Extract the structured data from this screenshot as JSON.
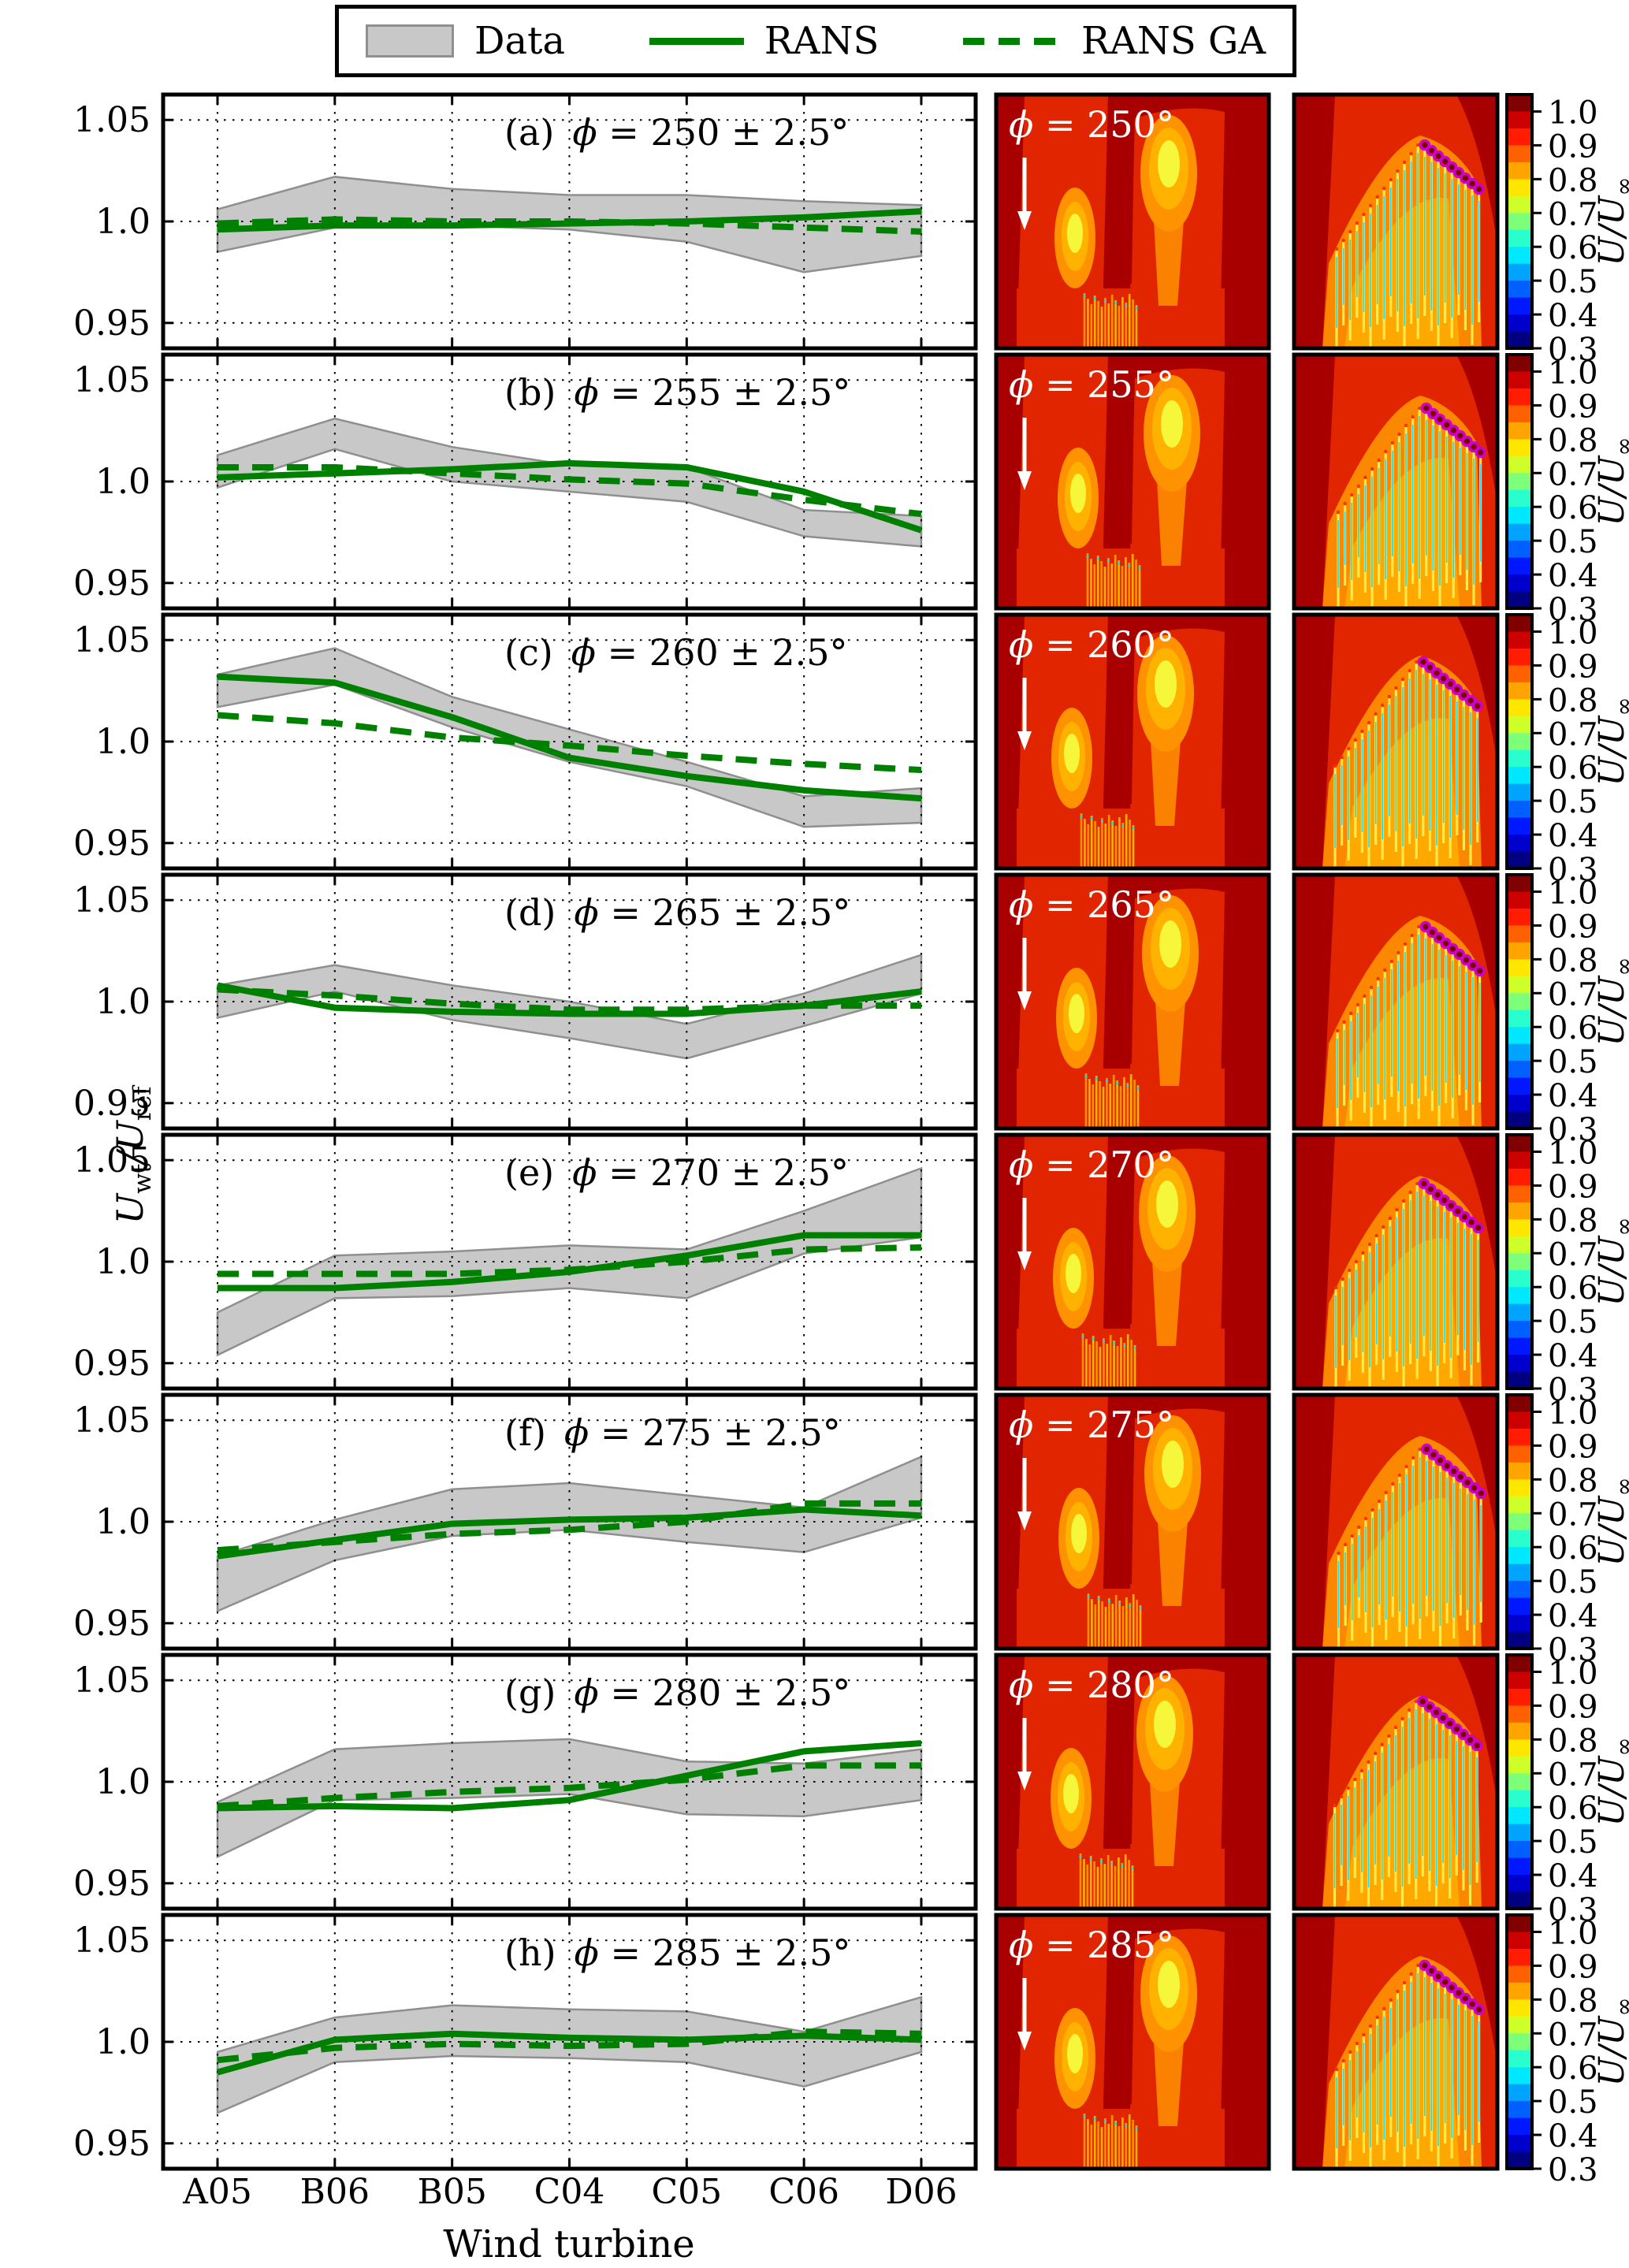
{
  "legend": {
    "items": [
      {
        "label": "Data",
        "swatch": "patch"
      },
      {
        "label": "RANS",
        "swatch": "solid-line"
      },
      {
        "label": "RANS GA",
        "swatch": "dashed-line"
      }
    ]
  },
  "axes": {
    "xlabel": "Wind turbine",
    "ylabel": {
      "base1": "U",
      "sub1": "wt",
      "slash": "/",
      "base2": "U",
      "sub2": "ref"
    },
    "categories": [
      "A05",
      "B06",
      "B05",
      "C04",
      "C05",
      "C06",
      "D06"
    ],
    "yticks": [
      "1.05",
      "1.0",
      "0.95"
    ],
    "ytick_values": [
      1.05,
      1.0,
      0.95
    ],
    "ylim": [
      0.9375,
      1.0625
    ],
    "grid": "dotted"
  },
  "colorbar": {
    "label": {
      "base": "U/U",
      "sub": "∞"
    },
    "ticks": [
      "1.0",
      "0.9",
      "0.8",
      "0.7",
      "0.6",
      "0.5",
      "0.4",
      "0.3"
    ],
    "tick_values": [
      1.0,
      0.9,
      0.8,
      0.7,
      0.6,
      0.5,
      0.4,
      0.3
    ],
    "range": [
      0.3,
      1.05
    ],
    "colors_top_to_bottom": [
      "#800000",
      "#cd0000",
      "#ff1c00",
      "#ff6000",
      "#ffa400",
      "#ffe600",
      "#ceff29",
      "#7dff7a",
      "#29ffce",
      "#00e8ff",
      "#00a4ff",
      "#0060ff",
      "#0018ff",
      "#0000cd",
      "#000080"
    ]
  },
  "colors": {
    "rans_green": "#008000",
    "band_fill": "#c8c8c8",
    "band_edge": "#8f8f8f",
    "contour_dark_red": "#a80000",
    "contour_red": "#e02500",
    "contour_orange": "#ff9200",
    "contour_amber": "#ffb300",
    "contour_yellow": "#f6f63a",
    "wake_yellow": "#ffe84a",
    "wake_cyan": "#00e0ff",
    "turbine_magenta": "#cf00cf",
    "label_white": "#ffffff"
  },
  "chart_data": {
    "type": "line",
    "title": "",
    "xlabel": "Wind turbine",
    "ylabel": "Uwt/Uref",
    "categories": [
      "A05",
      "B06",
      "B05",
      "C04",
      "C05",
      "C06",
      "D06"
    ],
    "ylim": [
      0.9375,
      1.0625
    ],
    "panels": [
      {
        "letter": "(a)",
        "phi_deg": 250,
        "tolerance_deg": 2.5,
        "annotation": "(a) ϕ = 250 ± 2.5°",
        "phi_symbol": "ϕ",
        "annotation_rest": " = 250 ± 2.5°",
        "contour_rest": " = 250°",
        "contour_label": "ϕ = 250°",
        "series": [
          {
            "name": "Data",
            "type": "band",
            "lower": [
              0.985,
              0.997,
              0.998,
              0.996,
              0.99,
              0.975,
              0.983
            ],
            "upper": [
              1.006,
              1.022,
              1.016,
              1.013,
              1.013,
              1.01,
              1.008
            ]
          },
          {
            "name": "RANS",
            "type": "line",
            "style": "solid",
            "values": [
              0.996,
              0.998,
              0.998,
              0.999,
              1.0,
              1.002,
              1.005
            ]
          },
          {
            "name": "RANS GA",
            "type": "line",
            "style": "dashed",
            "values": [
              0.999,
              1.001,
              1.0,
              1.0,
              0.999,
              0.997,
              0.995
            ]
          }
        ]
      },
      {
        "letter": "(b)",
        "phi_deg": 255,
        "tolerance_deg": 2.5,
        "annotation": "(b) ϕ = 255 ± 2.5°",
        "phi_symbol": "ϕ",
        "annotation_rest": " = 255 ± 2.5°",
        "contour_rest": " = 255°",
        "contour_label": "ϕ = 255°",
        "series": [
          {
            "name": "Data",
            "type": "band",
            "lower": [
              0.997,
              1.016,
              1.0,
              0.995,
              0.99,
              0.973,
              0.968
            ],
            "upper": [
              1.013,
              1.031,
              1.017,
              1.008,
              1.007,
              0.986,
              0.983
            ]
          },
          {
            "name": "RANS",
            "type": "line",
            "style": "solid",
            "values": [
              1.002,
              1.004,
              1.006,
              1.009,
              1.007,
              0.995,
              0.976
            ]
          },
          {
            "name": "RANS GA",
            "type": "line",
            "style": "dashed",
            "values": [
              1.007,
              1.007,
              1.004,
              1.001,
              0.999,
              0.991,
              0.984
            ]
          }
        ]
      },
      {
        "letter": "(c)",
        "phi_deg": 260,
        "tolerance_deg": 2.5,
        "annotation": "(c) ϕ = 260 ± 2.5°",
        "phi_symbol": "ϕ",
        "annotation_rest": " = 260 ± 2.5°",
        "contour_rest": " = 260°",
        "contour_label": "ϕ = 260°",
        "series": [
          {
            "name": "Data",
            "type": "band",
            "lower": [
              1.017,
              1.028,
              1.007,
              0.99,
              0.978,
              0.958,
              0.96
            ],
            "upper": [
              1.033,
              1.046,
              1.022,
              1.006,
              0.99,
              0.973,
              0.977
            ]
          },
          {
            "name": "RANS",
            "type": "line",
            "style": "solid",
            "values": [
              1.032,
              1.029,
              1.012,
              0.992,
              0.983,
              0.976,
              0.972
            ]
          },
          {
            "name": "RANS GA",
            "type": "line",
            "style": "dashed",
            "values": [
              1.013,
              1.009,
              1.002,
              0.998,
              0.993,
              0.989,
              0.986
            ]
          }
        ]
      },
      {
        "letter": "(d)",
        "phi_deg": 265,
        "tolerance_deg": 2.5,
        "annotation": "(d) ϕ = 265 ± 2.5°",
        "phi_symbol": "ϕ",
        "annotation_rest": " = 265 ± 2.5°",
        "contour_rest": " = 265°",
        "contour_label": "ϕ = 265°",
        "series": [
          {
            "name": "Data",
            "type": "band",
            "lower": [
              0.992,
              1.005,
              0.991,
              0.982,
              0.972,
              0.988,
              1.004
            ],
            "upper": [
              1.008,
              1.018,
              1.008,
              1.0,
              0.989,
              1.004,
              1.023
            ]
          },
          {
            "name": "RANS",
            "type": "line",
            "style": "solid",
            "values": [
              1.008,
              0.997,
              0.995,
              0.994,
              0.994,
              0.998,
              1.005
            ]
          },
          {
            "name": "RANS GA",
            "type": "line",
            "style": "dashed",
            "values": [
              1.006,
              1.003,
              0.999,
              0.996,
              0.996,
              0.998,
              0.998
            ]
          }
        ]
      },
      {
        "letter": "(e)",
        "phi_deg": 270,
        "tolerance_deg": 2.5,
        "annotation": "(e) ϕ = 270 ± 2.5°",
        "phi_symbol": "ϕ",
        "annotation_rest": " = 270 ± 2.5°",
        "contour_rest": " = 270°",
        "contour_label": "ϕ = 270°",
        "series": [
          {
            "name": "Data",
            "type": "band",
            "lower": [
              0.954,
              0.982,
              0.983,
              0.987,
              0.982,
              1.004,
              1.012
            ],
            "upper": [
              0.975,
              1.003,
              1.005,
              1.008,
              1.006,
              1.025,
              1.046
            ]
          },
          {
            "name": "RANS",
            "type": "line",
            "style": "solid",
            "values": [
              0.987,
              0.987,
              0.99,
              0.995,
              1.003,
              1.013,
              1.013
            ]
          },
          {
            "name": "RANS GA",
            "type": "line",
            "style": "dashed",
            "values": [
              0.994,
              0.994,
              0.994,
              0.996,
              1.0,
              1.006,
              1.007
            ]
          }
        ]
      },
      {
        "letter": "(f)",
        "phi_deg": 275,
        "tolerance_deg": 2.5,
        "annotation": "(f) ϕ = 275 ± 2.5°",
        "phi_symbol": "ϕ",
        "annotation_rest": " = 275 ± 2.5°",
        "contour_rest": " = 275°",
        "contour_label": "ϕ = 275°",
        "series": [
          {
            "name": "Data",
            "type": "band",
            "lower": [
              0.956,
              0.981,
              0.993,
              0.996,
              0.99,
              0.985,
              1.002
            ],
            "upper": [
              0.983,
              1.001,
              1.016,
              1.019,
              1.013,
              1.007,
              1.032
            ]
          },
          {
            "name": "RANS",
            "type": "line",
            "style": "solid",
            "values": [
              0.983,
              0.991,
              0.999,
              1.001,
              1.002,
              1.006,
              1.003
            ]
          },
          {
            "name": "RANS GA",
            "type": "line",
            "style": "dashed",
            "values": [
              0.986,
              0.99,
              0.994,
              0.996,
              1.0,
              1.009,
              1.009
            ]
          }
        ]
      },
      {
        "letter": "(g)",
        "phi_deg": 280,
        "tolerance_deg": 2.5,
        "annotation": "(g) ϕ = 280 ± 2.5°",
        "phi_symbol": "ϕ",
        "annotation_rest": " = 280 ± 2.5°",
        "contour_rest": " = 280°",
        "contour_label": "ϕ = 280°",
        "series": [
          {
            "name": "Data",
            "type": "band",
            "lower": [
              0.963,
              0.991,
              0.992,
              0.994,
              0.984,
              0.983,
              0.991
            ],
            "upper": [
              0.99,
              1.016,
              1.019,
              1.021,
              1.01,
              1.009,
              1.016
            ]
          },
          {
            "name": "RANS",
            "type": "line",
            "style": "solid",
            "values": [
              0.987,
              0.988,
              0.987,
              0.991,
              1.003,
              1.015,
              1.019
            ]
          },
          {
            "name": "RANS GA",
            "type": "line",
            "style": "dashed",
            "values": [
              0.988,
              0.992,
              0.995,
              0.997,
              1.001,
              1.008,
              1.008
            ]
          }
        ]
      },
      {
        "letter": "(h)",
        "phi_deg": 285,
        "tolerance_deg": 2.5,
        "annotation": "(h) ϕ = 285 ± 2.5°",
        "phi_symbol": "ϕ",
        "annotation_rest": " = 285 ± 2.5°",
        "contour_rest": " = 285°",
        "contour_label": "ϕ = 285°",
        "series": [
          {
            "name": "Data",
            "type": "band",
            "lower": [
              0.965,
              0.99,
              0.993,
              0.992,
              0.99,
              0.978,
              0.995
            ],
            "upper": [
              0.995,
              1.012,
              1.018,
              1.016,
              1.015,
              1.005,
              1.022
            ]
          },
          {
            "name": "RANS",
            "type": "line",
            "style": "solid",
            "values": [
              0.985,
              1.001,
              1.004,
              1.002,
              1.001,
              1.003,
              1.001
            ]
          },
          {
            "name": "RANS GA",
            "type": "line",
            "style": "dashed",
            "values": [
              0.991,
              0.997,
              0.999,
              0.998,
              0.999,
              1.005,
              1.004
            ]
          }
        ]
      }
    ]
  }
}
